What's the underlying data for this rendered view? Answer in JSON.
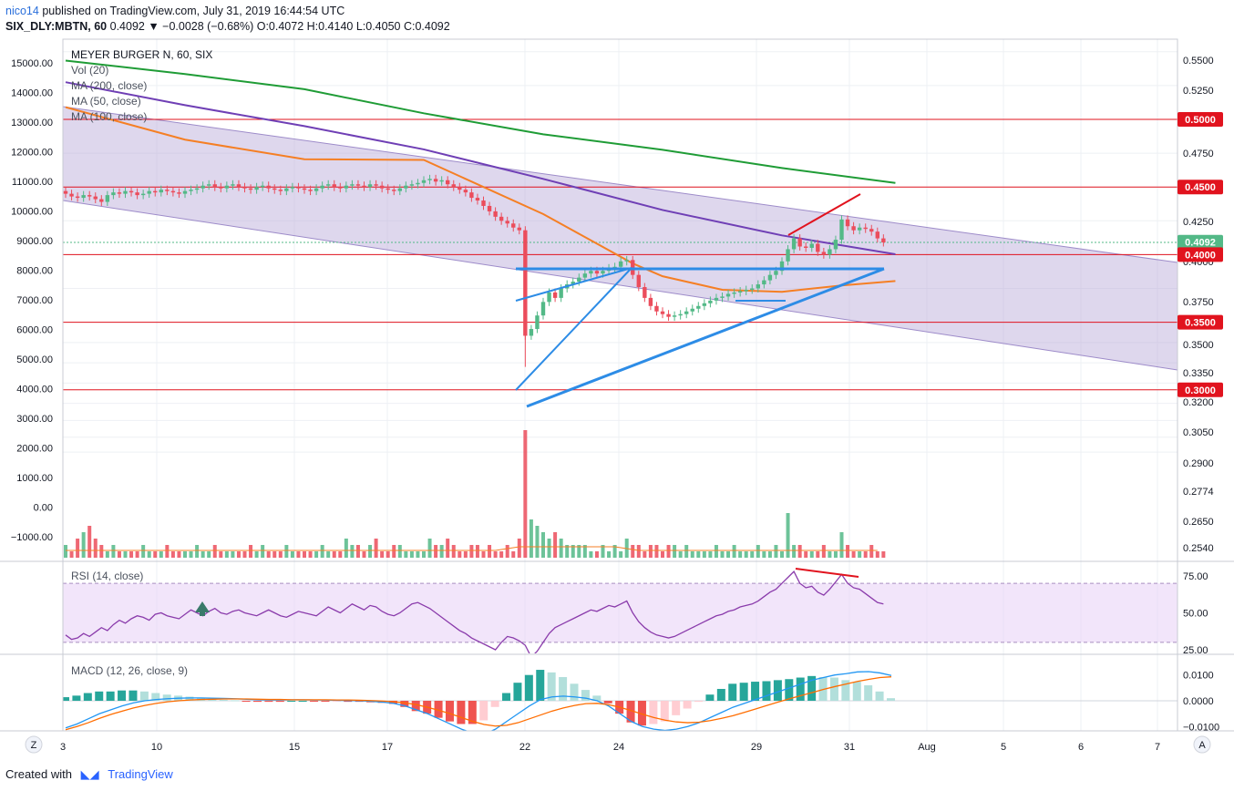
{
  "header": {
    "author": "nico14",
    "published": "published on TradingView.com, July 31, 2019 16:44:54 UTC",
    "symbol": "SIX_DLY:MBTN, 60",
    "price_line": "0.4092 ▼ −0.0028 (−0.68%) O:0.4072 H:0.4140 L:0.4050 C:0.4092"
  },
  "footer": {
    "created_with": "Created with",
    "brand": "TradingView"
  },
  "corner_buttons": {
    "left": "Z",
    "right": "A"
  },
  "colors": {
    "up": "#53b987",
    "down": "#eb4d5c",
    "ma200": "#1f9c36",
    "ma50": "#f57f24",
    "ma100": "#6f3fb5",
    "channel": "#b5a7d6",
    "level": "#e1131e",
    "trend": "#2d8ce6",
    "rsi": "#8a3bab",
    "macd": "#2196f3",
    "signal": "#ff6d00"
  },
  "chart_data": [
    {
      "type": "candlestick",
      "title": "MEYER BURGER N, 60, SIX",
      "legend": [
        "Vol (20)",
        "MA (200, close)",
        "MA (50, close)",
        "MA (100, close)"
      ],
      "x_ticks": [
        "3",
        "10",
        "15",
        "17",
        "22",
        "24",
        "29",
        "31",
        "Aug",
        "5",
        "6",
        "7"
      ],
      "right_axis_ticks": [
        "0.5500",
        "0.5250",
        "0.5000",
        "0.4750",
        "0.4500",
        "0.4250",
        "0.4000",
        "0.3750",
        "0.3500",
        "0.3350",
        "0.3200",
        "0.3050",
        "0.2900",
        "0.2774",
        "0.2650",
        "0.2540"
      ],
      "left_axis_ticks": [
        "15000.00",
        "14000.00",
        "13000.00",
        "12000.00",
        "11000.00",
        "10000.00",
        "9000.00",
        "8000.00",
        "7000.00",
        "6000.00",
        "5000.00",
        "4000.00",
        "3000.00",
        "2000.00",
        "1000.00",
        "0.00",
        "−1000.00"
      ],
      "price_labels": [
        {
          "value": "0.5000",
          "color": "#e1131e"
        },
        {
          "value": "0.4500",
          "color": "#e1131e"
        },
        {
          "value": "0.4092",
          "color": "#53b987"
        },
        {
          "value": "0.4000",
          "color": "#e1131e"
        },
        {
          "value": "0.3500",
          "color": "#e1131e"
        },
        {
          "value": "0.3000",
          "color": "#e1131e"
        }
      ],
      "close_series": [
        0.445,
        0.443,
        0.442,
        0.444,
        0.443,
        0.441,
        0.439,
        0.444,
        0.446,
        0.445,
        0.447,
        0.446,
        0.444,
        0.445,
        0.447,
        0.446,
        0.448,
        0.447,
        0.446,
        0.445,
        0.447,
        0.448,
        0.449,
        0.451,
        0.452,
        0.45,
        0.449,
        0.451,
        0.452,
        0.45,
        0.449,
        0.448,
        0.45,
        0.451,
        0.449,
        0.448,
        0.447,
        0.449,
        0.45,
        0.449,
        0.448,
        0.447,
        0.449,
        0.451,
        0.452,
        0.45,
        0.449,
        0.451,
        0.452,
        0.451,
        0.45,
        0.452,
        0.451,
        0.449,
        0.448,
        0.447,
        0.449,
        0.451,
        0.452,
        0.453,
        0.455,
        0.456,
        0.454,
        0.455,
        0.452,
        0.45,
        0.448,
        0.446,
        0.442,
        0.44,
        0.436,
        0.432,
        0.428,
        0.425,
        0.423,
        0.42,
        0.418,
        0.34,
        0.345,
        0.355,
        0.365,
        0.372,
        0.368,
        0.375,
        0.378,
        0.38,
        0.383,
        0.386,
        0.388,
        0.386,
        0.388,
        0.39,
        0.391,
        0.395,
        0.396,
        0.385,
        0.376,
        0.368,
        0.362,
        0.358,
        0.356,
        0.354,
        0.355,
        0.356,
        0.358,
        0.36,
        0.362,
        0.364,
        0.366,
        0.368,
        0.369,
        0.371,
        0.372,
        0.373,
        0.374,
        0.375,
        0.378,
        0.381,
        0.385,
        0.388,
        0.395,
        0.404,
        0.412,
        0.406,
        0.405,
        0.408,
        0.402,
        0.4,
        0.404,
        0.411,
        0.426,
        0.421,
        0.418,
        0.42,
        0.419,
        0.417,
        0.412,
        0.409
      ],
      "lines": [
        {
          "name": "MA (200, close)",
          "points": [
            [
              0,
              0.5435
            ],
            [
              20,
              0.5335
            ],
            [
              40,
              0.5223
            ],
            [
              60,
              0.5045
            ],
            [
              80,
              0.489
            ],
            [
              100,
              0.4775
            ],
            [
              120,
              0.464
            ],
            [
              139,
              0.453
            ]
          ]
        },
        {
          "name": "MA (100, close)",
          "points": [
            [
              0,
              0.5275
            ],
            [
              20,
              0.5105
            ],
            [
              40,
              0.495
            ],
            [
              60,
              0.4778
            ],
            [
              80,
              0.456
            ],
            [
              100,
              0.433
            ],
            [
              120,
              0.4142
            ],
            [
              139,
              0.4003
            ]
          ]
        },
        {
          "name": "MA (50, close)",
          "points": [
            [
              0,
              0.509
            ],
            [
              20,
              0.485
            ],
            [
              40,
              0.4705
            ],
            [
              60,
              0.47
            ],
            [
              80,
              0.43
            ],
            [
              95,
              0.3935
            ],
            [
              100,
              0.384
            ],
            [
              110,
              0.374
            ],
            [
              120,
              0.3725
            ],
            [
              130,
              0.3772
            ],
            [
              139,
              0.3805
            ]
          ]
        }
      ],
      "volume": [
        2,
        1,
        3,
        4,
        5,
        3,
        2,
        1,
        2,
        1,
        1,
        1,
        1,
        2,
        1,
        1,
        1,
        2,
        1,
        1,
        1,
        1,
        2,
        1,
        1,
        2,
        1,
        1,
        1,
        1,
        1,
        2,
        1,
        2,
        1,
        1,
        1,
        2,
        1,
        1,
        1,
        1,
        1,
        2,
        1,
        1,
        1,
        3,
        2,
        2,
        1,
        2,
        3,
        1,
        1,
        2,
        2,
        1,
        1,
        1,
        1,
        3,
        2,
        2,
        3,
        2,
        1,
        1,
        2,
        2,
        1,
        2,
        1,
        1,
        2,
        1,
        3,
        20,
        6,
        5,
        4,
        3,
        4,
        3,
        2,
        2,
        2,
        2,
        1,
        1,
        2,
        1,
        2,
        1,
        3,
        2,
        2,
        1,
        2,
        2,
        1,
        2,
        2,
        1,
        2,
        1,
        1,
        1,
        1,
        2,
        1,
        1,
        2,
        1,
        1,
        1,
        2,
        1,
        1,
        2,
        1,
        7,
        2,
        2,
        1,
        1,
        1,
        2,
        1,
        1,
        4,
        2,
        1,
        1,
        1,
        2,
        1,
        1
      ],
      "overlays": {
        "channel": "descending parallel channel",
        "levels": [
          "0.5000",
          "0.4500",
          "0.4000",
          "0.3500",
          "0.3000"
        ],
        "trendlines": [
          "ascending triangle support",
          "horizontal resistance 0.3940"
        ]
      }
    },
    {
      "type": "line",
      "title": "RSI (14, close)",
      "y_ticks": [
        "75.00",
        "50.00",
        "25.00"
      ],
      "ylim": [
        15,
        80
      ],
      "values": [
        35,
        32,
        33,
        36,
        34,
        37,
        40,
        38,
        42,
        45,
        43,
        46,
        48,
        47,
        45,
        49,
        50,
        48,
        47,
        46,
        49,
        52,
        50,
        48,
        51,
        53,
        50,
        49,
        51,
        52,
        50,
        49,
        48,
        50,
        52,
        50,
        48,
        47,
        49,
        51,
        50,
        49,
        48,
        51,
        54,
        52,
        50,
        53,
        56,
        54,
        52,
        55,
        54,
        51,
        49,
        48,
        50,
        53,
        56,
        57,
        55,
        53,
        50,
        47,
        44,
        41,
        38,
        36,
        33,
        31,
        29,
        27,
        25,
        30,
        34,
        33,
        31,
        28,
        20,
        24,
        30,
        36,
        40,
        42,
        44,
        46,
        48,
        50,
        52,
        51,
        53,
        55,
        54,
        56,
        58,
        50,
        44,
        40,
        37,
        35,
        34,
        33,
        34,
        36,
        38,
        40,
        42,
        44,
        46,
        48,
        49,
        51,
        52,
        54,
        55,
        56,
        58,
        61,
        64,
        66,
        70,
        74,
        78,
        70,
        67,
        68,
        64,
        62,
        66,
        71,
        76,
        70,
        67,
        66,
        63,
        60,
        57,
        56
      ]
    },
    {
      "type": "line",
      "title": "MACD (12, 26, close, 9)",
      "y_ticks": [
        "0.0100",
        "0.0000",
        "−0.0100"
      ],
      "ylim": [
        -0.0115,
        0.0125
      ],
      "macd": [
        -0.0105,
        -0.009,
        -0.007,
        -0.005,
        -0.0035,
        -0.002,
        -0.0008,
        0.0,
        0.0005,
        0.0008,
        0.001,
        0.0011,
        0.0011,
        0.001,
        0.0009,
        0.0008,
        0.0006,
        0.0004,
        0.0003,
        0.0003,
        0.0004,
        0.0004,
        0.0003,
        0.0003,
        0.0002,
        0.0001,
        0.0,
        -0.0002,
        -0.0005,
        -0.001,
        -0.002,
        -0.0035,
        -0.005,
        -0.007,
        -0.009,
        -0.011,
        -0.0125,
        -0.013,
        -0.011,
        -0.008,
        -0.005,
        -0.002,
        0.0005,
        0.0015,
        0.0018,
        0.0015,
        0.001,
        0.0,
        -0.002,
        -0.005,
        -0.008,
        -0.01,
        -0.011,
        -0.0115,
        -0.011,
        -0.01,
        -0.0085,
        -0.0065,
        -0.0045,
        -0.0025,
        -0.001,
        0.0005,
        0.002,
        0.0035,
        0.005,
        0.0065,
        0.008,
        0.009,
        0.01,
        0.0105,
        0.0112,
        0.0113,
        0.0108,
        0.0098
      ],
      "signal": [
        -0.0112,
        -0.01,
        -0.0085,
        -0.0068,
        -0.0053,
        -0.004,
        -0.0028,
        -0.0018,
        -0.001,
        -0.0004,
        0.0,
        0.0003,
        0.0005,
        0.0006,
        0.0007,
        0.0007,
        0.0007,
        0.0006,
        0.0005,
        0.0005,
        0.0004,
        0.0004,
        0.0004,
        0.0004,
        0.0003,
        0.0003,
        0.0002,
        0.0001,
        -0.0001,
        -0.0004,
        -0.0008,
        -0.0015,
        -0.0025,
        -0.0037,
        -0.005,
        -0.0065,
        -0.008,
        -0.0092,
        -0.0098,
        -0.0095,
        -0.0085,
        -0.007,
        -0.0055,
        -0.004,
        -0.0028,
        -0.0018,
        -0.0011,
        -0.001,
        -0.0015,
        -0.0025,
        -0.0038,
        -0.0052,
        -0.0065,
        -0.0075,
        -0.0082,
        -0.0085,
        -0.0083,
        -0.0077,
        -0.0068,
        -0.0058,
        -0.0045,
        -0.0032,
        -0.0018,
        -0.0005,
        0.0008,
        0.002,
        0.0032,
        0.0044,
        0.0055,
        0.0065,
        0.0075,
        0.0083,
        0.009,
        0.0093
      ]
    }
  ]
}
